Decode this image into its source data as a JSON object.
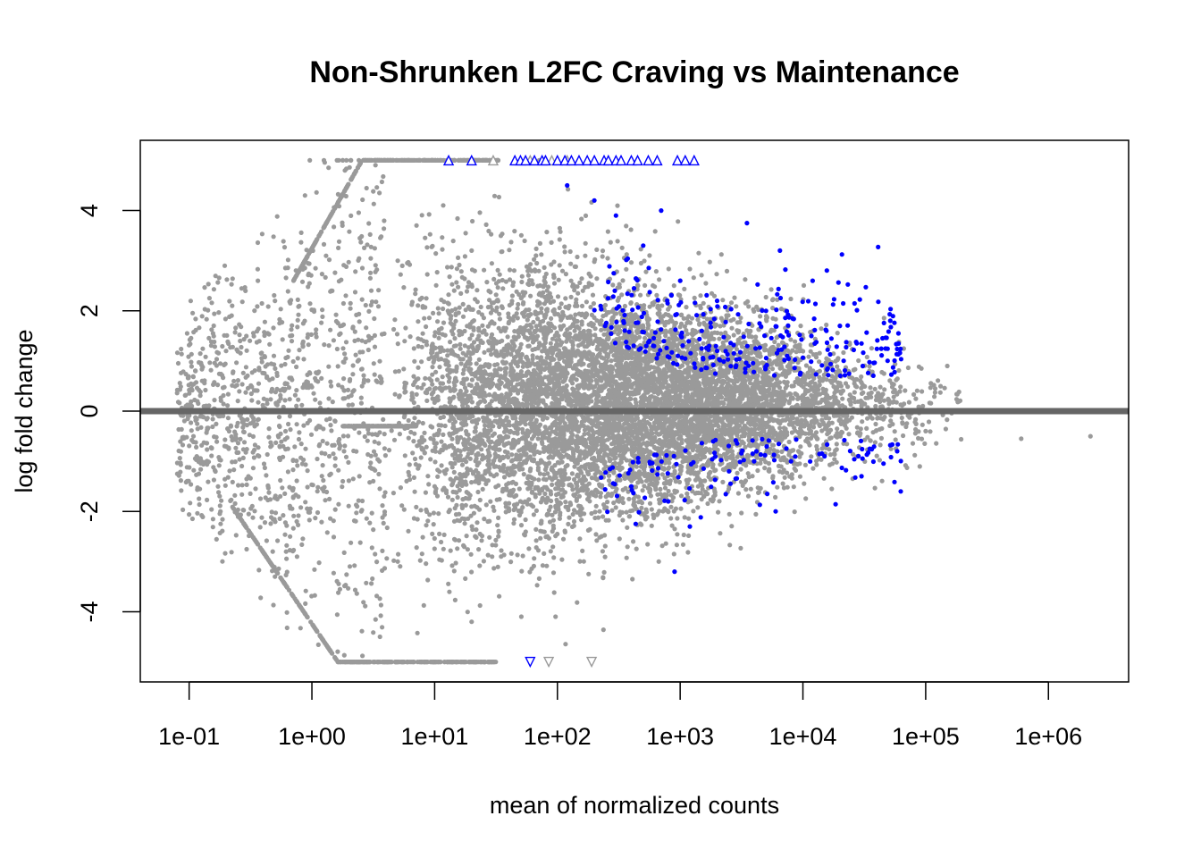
{
  "chart_data": {
    "type": "scatter",
    "title": "Non-Shrunken L2FC Craving vs Maintenance",
    "xlabel": "mean of normalized counts",
    "ylabel": "log fold change",
    "x_scale": "log10",
    "xlim": [
      0.04,
      4500000
    ],
    "ylim": [
      -5.4,
      5.4
    ],
    "x_ticks": [
      0.1,
      1,
      10,
      100,
      1000,
      10000,
      100000,
      1000000
    ],
    "x_tick_labels": [
      "1e-01",
      "1e+00",
      "1e+01",
      "1e+02",
      "1e+03",
      "1e+04",
      "1e+05",
      "1e+06"
    ],
    "y_ticks": [
      -4,
      -2,
      0,
      2,
      4
    ],
    "y_tick_labels": [
      "-4",
      "-2",
      "0",
      "2",
      "4"
    ],
    "reference_line": {
      "y": 0,
      "color": "#666666"
    },
    "grid": false,
    "legend": "none",
    "colors": {
      "not_significant": "#9a9a9a",
      "significant": "#0000ff"
    },
    "series": [
      {
        "category": "not_significant",
        "color": "#9a9a9a",
        "n_points_approx": 9000,
        "points_sample": [
          [
            0.08,
            0.42
          ],
          [
            0.1,
            0.42
          ],
          [
            0.12,
            0.42
          ],
          [
            0.08,
            -1.25
          ],
          [
            0.12,
            -1.25
          ],
          [
            0.2,
            1.2
          ],
          [
            0.18,
            -2.0
          ],
          [
            0.5,
            2.2
          ],
          [
            0.5,
            -3.3
          ],
          [
            1.6,
            5.0
          ],
          [
            2.0,
            -5.0
          ],
          [
            5,
            3.0
          ],
          [
            5,
            -3.0
          ],
          [
            10,
            1.5
          ],
          [
            10,
            -1.5
          ],
          [
            20,
            3.2
          ],
          [
            20,
            -4.2
          ],
          [
            50,
            1.0
          ],
          [
            50,
            -1.8
          ],
          [
            100,
            0.5
          ],
          [
            100,
            -0.8
          ],
          [
            300,
            0.4
          ],
          [
            300,
            -0.6
          ],
          [
            1000,
            0.3
          ],
          [
            1000,
            -0.5
          ],
          [
            3000,
            0.8
          ],
          [
            10000,
            0.2
          ],
          [
            10000,
            -0.3
          ],
          [
            30000,
            0.1
          ],
          [
            100000,
            -0.4
          ],
          [
            150000,
            0.9
          ],
          [
            600000,
            0.0
          ],
          [
            600000,
            -0.55
          ],
          [
            2200000,
            -0.5
          ]
        ]
      },
      {
        "category": "significant",
        "color": "#0000ff",
        "n_points_approx": 380,
        "points_sample": [
          [
            120,
            4.5
          ],
          [
            200,
            4.2
          ],
          [
            300,
            3.9
          ],
          [
            700,
            4.0
          ],
          [
            3500,
            3.75
          ],
          [
            500,
            3.3
          ],
          [
            1000,
            2.6
          ],
          [
            2000,
            2.2
          ],
          [
            5000,
            2.0
          ],
          [
            6500,
            3.2
          ],
          [
            12000,
            2.6
          ],
          [
            20000,
            1.7
          ],
          [
            30000,
            1.35
          ],
          [
            60000,
            1.55
          ],
          [
            1500,
            1.6
          ],
          [
            2500,
            -1.2
          ],
          [
            4000,
            -1.0
          ],
          [
            8000,
            -1.0
          ],
          [
            15000,
            -0.9
          ],
          [
            30000,
            -1.3
          ],
          [
            800,
            -1.8
          ],
          [
            1200,
            -2.3
          ],
          [
            900,
            -3.2
          ],
          [
            6000,
            -2.0
          ],
          [
            400,
            -1.5
          ]
        ]
      }
    ],
    "clipped_markers": {
      "top": {
        "y": 5.0,
        "symbol": "triangle-up",
        "blue_x": [
          13,
          20,
          45,
          50,
          55,
          65,
          75,
          80,
          100,
          115,
          130,
          150,
          175,
          200,
          240,
          260,
          300,
          330,
          400,
          450,
          550,
          650,
          950,
          1100,
          1300
        ],
        "gray_x": [
          30,
          60,
          90,
          120
        ]
      },
      "bottom": {
        "y": -5.0,
        "symbol": "triangle-down",
        "blue_x": [
          60
        ],
        "gray_x": [
          85,
          190
        ]
      }
    }
  }
}
